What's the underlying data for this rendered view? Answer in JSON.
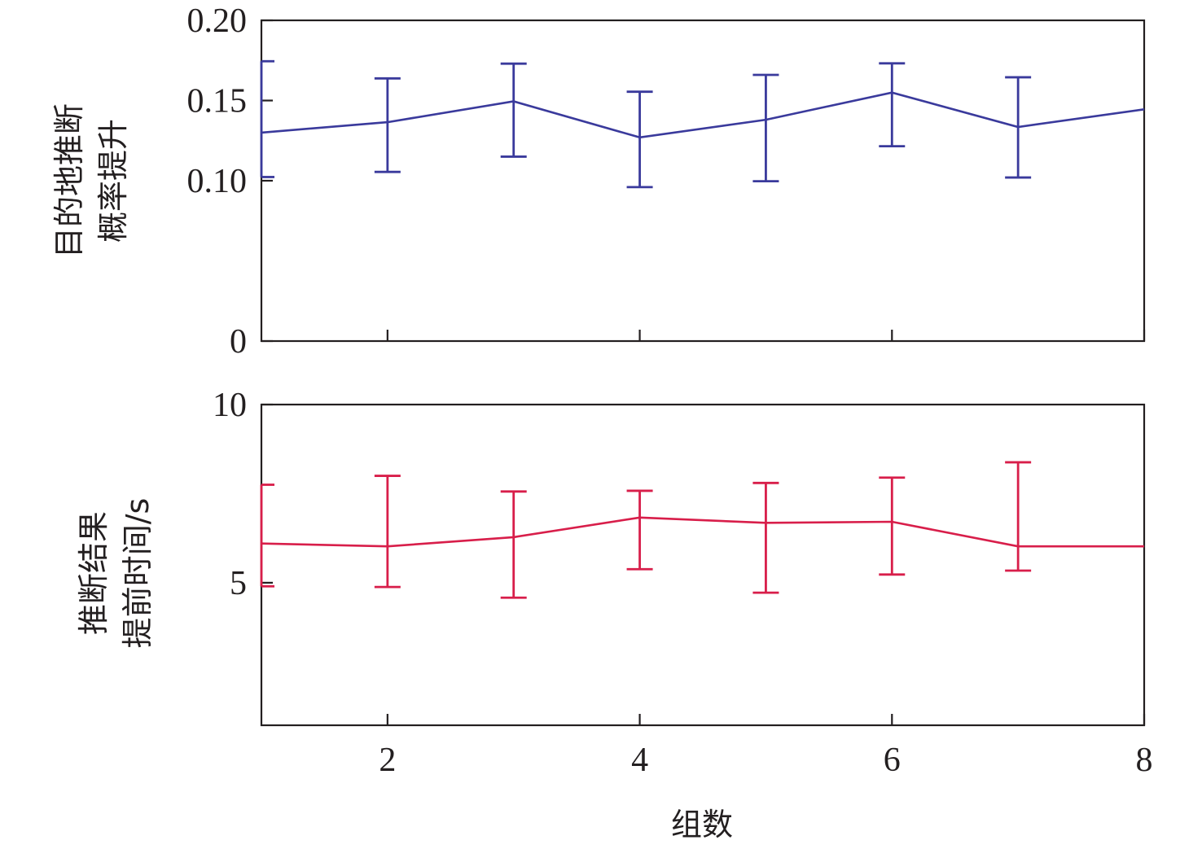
{
  "chart_data": [
    {
      "type": "line",
      "ylabel_lines": [
        "目的地推断",
        "概率提升"
      ],
      "ylim": [
        0,
        0.2
      ],
      "yticks": [
        0,
        0.1,
        0.15,
        0.2
      ],
      "ytick_labels": [
        "0",
        "0.10",
        "0.15",
        "0.20"
      ],
      "xlim": [
        1,
        8
      ],
      "xticks": [
        2,
        4,
        6,
        8
      ],
      "color": "#3a3a9c",
      "grid": false,
      "series": [
        {
          "x": [
            1,
            2,
            3,
            4,
            5,
            6,
            7,
            8
          ],
          "y": [
            0.13,
            0.1365,
            0.1495,
            0.127,
            0.138,
            0.155,
            0.1335,
            0.1445
          ],
          "err_low": [
            0.1023,
            0.1055,
            0.115,
            0.096,
            0.0997,
            0.1215,
            0.102,
            null
          ],
          "err_high": [
            0.1745,
            0.1638,
            0.173,
            0.1555,
            0.166,
            0.1732,
            0.1645,
            null
          ]
        }
      ]
    },
    {
      "type": "line",
      "ylabel_lines": [
        "推断结果",
        "提前时间/s"
      ],
      "xlabel": "组数",
      "ylim": [
        1,
        10
      ],
      "yticks": [
        5,
        10
      ],
      "ytick_labels": [
        "5",
        "10"
      ],
      "xlim": [
        1,
        8
      ],
      "xticks": [
        2,
        4,
        6,
        8
      ],
      "xtick_labels": [
        "2",
        "4",
        "6",
        "8"
      ],
      "color": "#d81e4a",
      "grid": false,
      "series": [
        {
          "x": [
            1,
            2,
            3,
            4,
            5,
            6,
            7,
            8
          ],
          "y": [
            6.1,
            6.02,
            6.28,
            6.83,
            6.68,
            6.71,
            6.02,
            6.02
          ],
          "err_low": [
            4.9,
            4.88,
            4.58,
            5.38,
            4.72,
            5.23,
            5.34,
            null
          ],
          "err_high": [
            7.75,
            8.0,
            7.56,
            7.58,
            7.8,
            7.95,
            8.38,
            null
          ]
        }
      ]
    }
  ]
}
